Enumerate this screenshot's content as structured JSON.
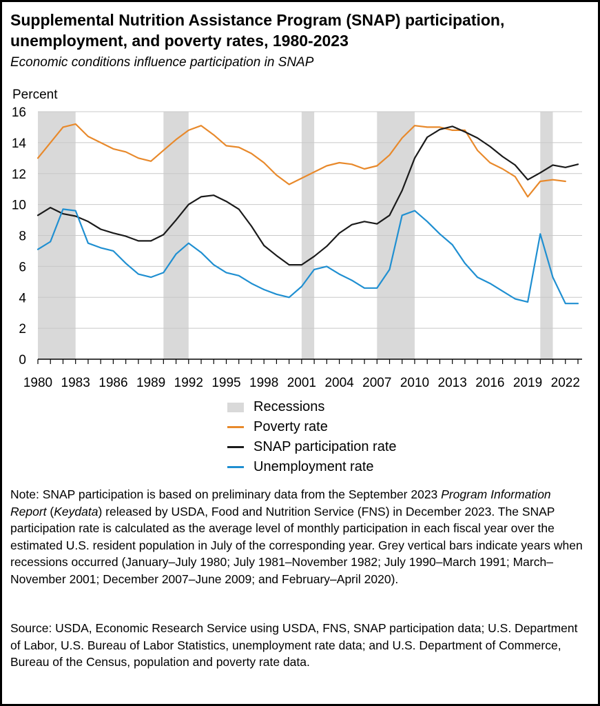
{
  "title": "Supplemental Nutrition Assistance Program (SNAP) participation, unemployment, and poverty rates, 1980-2023",
  "subtitle": "Economic conditions influence participation in SNAP",
  "chart_data": {
    "type": "line",
    "ylabel": "Percent",
    "xlabel": "",
    "ylim": [
      0,
      16
    ],
    "xlim": [
      1980,
      2023
    ],
    "yticks": [
      "0",
      "2",
      "4",
      "6",
      "8",
      "10",
      "12",
      "14",
      "16"
    ],
    "xticks": [
      "1980",
      "1983",
      "1986",
      "1989",
      "1992",
      "1995",
      "1998",
      "2001",
      "2004",
      "2007",
      "2010",
      "2013",
      "2016",
      "2019",
      "2022"
    ],
    "grid": "horizontal",
    "recessions": [
      [
        1980,
        1983
      ],
      [
        1990,
        1992
      ],
      [
        2001,
        2002
      ],
      [
        2007,
        2010
      ],
      [
        2020,
        2021
      ]
    ],
    "series": [
      {
        "name": "Poverty rate",
        "color": "#e8892b",
        "x": [
          1980,
          1981,
          1982,
          1983,
          1984,
          1985,
          1986,
          1987,
          1988,
          1989,
          1990,
          1991,
          1992,
          1993,
          1994,
          1995,
          1996,
          1997,
          1998,
          1999,
          2000,
          2001,
          2002,
          2003,
          2004,
          2005,
          2006,
          2007,
          2008,
          2009,
          2010,
          2011,
          2012,
          2013,
          2014,
          2015,
          2016,
          2017,
          2018,
          2019,
          2020,
          2021,
          2022
        ],
        "values": [
          13.0,
          14.0,
          15.0,
          15.2,
          14.4,
          14.0,
          13.6,
          13.4,
          13.0,
          12.8,
          13.5,
          14.2,
          14.8,
          15.1,
          14.5,
          13.8,
          13.7,
          13.3,
          12.7,
          11.9,
          11.3,
          11.7,
          12.1,
          12.5,
          12.7,
          12.6,
          12.3,
          12.5,
          13.2,
          14.3,
          15.1,
          15.0,
          15.0,
          14.8,
          14.8,
          13.5,
          12.7,
          12.3,
          11.8,
          10.5,
          11.5,
          11.6,
          11.5
        ]
      },
      {
        "name": "SNAP participation rate",
        "color": "#1a1a1a",
        "x": [
          1980,
          1981,
          1982,
          1983,
          1984,
          1985,
          1986,
          1987,
          1988,
          1989,
          1990,
          1991,
          1992,
          1993,
          1994,
          1995,
          1996,
          1997,
          1998,
          1999,
          2000,
          2001,
          2002,
          2003,
          2004,
          2005,
          2006,
          2007,
          2008,
          2009,
          2010,
          2011,
          2012,
          2013,
          2014,
          2015,
          2016,
          2017,
          2018,
          2019,
          2020,
          2021,
          2022,
          2023
        ],
        "values": [
          9.3,
          9.8,
          9.4,
          9.25,
          8.9,
          8.4,
          8.15,
          7.95,
          7.65,
          7.65,
          8.05,
          9.0,
          10.0,
          10.5,
          10.6,
          10.2,
          9.7,
          8.6,
          7.35,
          6.7,
          6.1,
          6.1,
          6.65,
          7.3,
          8.15,
          8.7,
          8.9,
          8.75,
          9.3,
          10.9,
          13.0,
          14.35,
          14.85,
          15.05,
          14.7,
          14.3,
          13.75,
          13.1,
          12.55,
          11.6,
          12.05,
          12.55,
          12.4,
          12.6
        ]
      },
      {
        "name": "Unemployment rate",
        "color": "#1f8fd1",
        "x": [
          1980,
          1981,
          1982,
          1983,
          1984,
          1985,
          1986,
          1987,
          1988,
          1989,
          1990,
          1991,
          1992,
          1993,
          1994,
          1995,
          1996,
          1997,
          1998,
          1999,
          2000,
          2001,
          2002,
          2003,
          2004,
          2005,
          2006,
          2007,
          2008,
          2009,
          2010,
          2011,
          2012,
          2013,
          2014,
          2015,
          2016,
          2017,
          2018,
          2019,
          2020,
          2021,
          2022,
          2023
        ],
        "values": [
          7.1,
          7.6,
          9.7,
          9.6,
          7.5,
          7.2,
          7.0,
          6.2,
          5.5,
          5.3,
          5.6,
          6.8,
          7.5,
          6.9,
          6.1,
          5.6,
          5.4,
          4.9,
          4.5,
          4.2,
          4.0,
          4.7,
          5.8,
          6.0,
          5.5,
          5.1,
          4.6,
          4.6,
          5.8,
          9.3,
          9.6,
          8.9,
          8.1,
          7.4,
          6.2,
          5.3,
          4.9,
          4.4,
          3.9,
          3.7,
          8.1,
          5.3,
          3.6,
          3.6
        ]
      }
    ]
  },
  "legend": {
    "recessions_label": "Recessions",
    "poverty_label": "Poverty rate",
    "snap_label": "SNAP participation rate",
    "unemployment_label": "Unemployment rate",
    "recession_color": "#d9d9d9"
  },
  "note": {
    "part1": "Note: SNAP participation is based on preliminary data from the September 2023 ",
    "report_name": "Program Information Report",
    "part2": " (",
    "keydata": "Keydata",
    "part3": ") released by USDA, Food and Nutrition Service (FNS) in December 2023. The SNAP participation rate is calculated as the average level of monthly participation in each fiscal year over the estimated U.S. resident population in July of the corresponding year. Grey vertical bars indicate years when recessions occurred (January–July 1980; July 1981–November 1982; July 1990–March 1991; March–November 2001; December 2007–June 2009; and February–April 2020)."
  },
  "source": "Source: USDA, Economic Research Service using USDA, FNS, SNAP participation data; U.S. Department of Labor, U.S. Bureau of Labor Statistics, unemployment rate data; and U.S. Department of Commerce, Bureau of the Census, population and poverty rate data."
}
